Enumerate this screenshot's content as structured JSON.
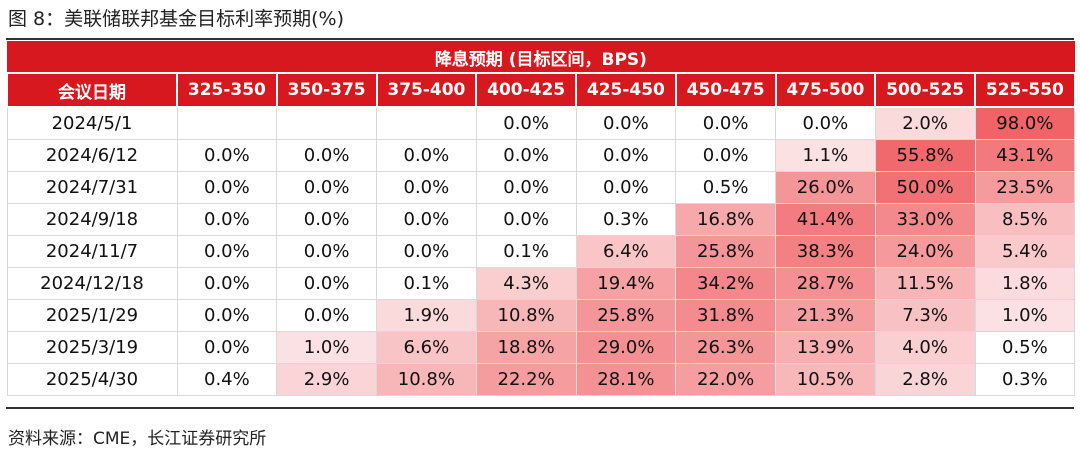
{
  "title": "图 8：美联储联邦基金目标利率预期(%)",
  "banner": "降息预期 (目标区间，BPS)",
  "columns": [
    "会议日期",
    "325-350",
    "350-375",
    "375-400",
    "400-425",
    "425-450",
    "450-475",
    "475-500",
    "500-525",
    "525-550"
  ],
  "rows": [
    {
      "date": "2024/5/1",
      "values": [
        "",
        "",
        "",
        "0.0%",
        "0.0%",
        "0.0%",
        "0.0%",
        "2.0%",
        "98.0%"
      ]
    },
    {
      "date": "2024/6/12",
      "values": [
        "0.0%",
        "0.0%",
        "0.0%",
        "0.0%",
        "0.0%",
        "0.0%",
        "1.1%",
        "55.8%",
        "43.1%"
      ]
    },
    {
      "date": "2024/7/31",
      "values": [
        "0.0%",
        "0.0%",
        "0.0%",
        "0.0%",
        "0.0%",
        "0.5%",
        "26.0%",
        "50.0%",
        "23.5%"
      ]
    },
    {
      "date": "2024/9/18",
      "values": [
        "0.0%",
        "0.0%",
        "0.0%",
        "0.0%",
        "0.3%",
        "16.8%",
        "41.4%",
        "33.0%",
        "8.5%"
      ]
    },
    {
      "date": "2024/11/7",
      "values": [
        "0.0%",
        "0.0%",
        "0.0%",
        "0.1%",
        "6.4%",
        "25.8%",
        "38.3%",
        "24.0%",
        "5.4%"
      ]
    },
    {
      "date": "2024/12/18",
      "values": [
        "0.0%",
        "0.0%",
        "0.1%",
        "4.3%",
        "19.4%",
        "34.2%",
        "28.7%",
        "11.5%",
        "1.8%"
      ]
    },
    {
      "date": "2025/1/29",
      "values": [
        "0.0%",
        "0.0%",
        "1.9%",
        "10.8%",
        "25.8%",
        "31.8%",
        "21.3%",
        "7.3%",
        "1.0%"
      ]
    },
    {
      "date": "2025/3/19",
      "values": [
        "0.0%",
        "1.0%",
        "6.6%",
        "18.8%",
        "29.0%",
        "26.3%",
        "13.9%",
        "4.0%",
        "0.5%"
      ]
    },
    {
      "date": "2025/4/30",
      "values": [
        "0.4%",
        "2.9%",
        "10.8%",
        "22.2%",
        "28.1%",
        "22.0%",
        "10.5%",
        "2.8%",
        "0.3%"
      ]
    }
  ],
  "source": "资料来源：CME，长江证券研究所",
  "colors": {
    "header_red": "#d7191f",
    "heat_low": "#fdf4f5",
    "heat_high": "#f06468"
  }
}
